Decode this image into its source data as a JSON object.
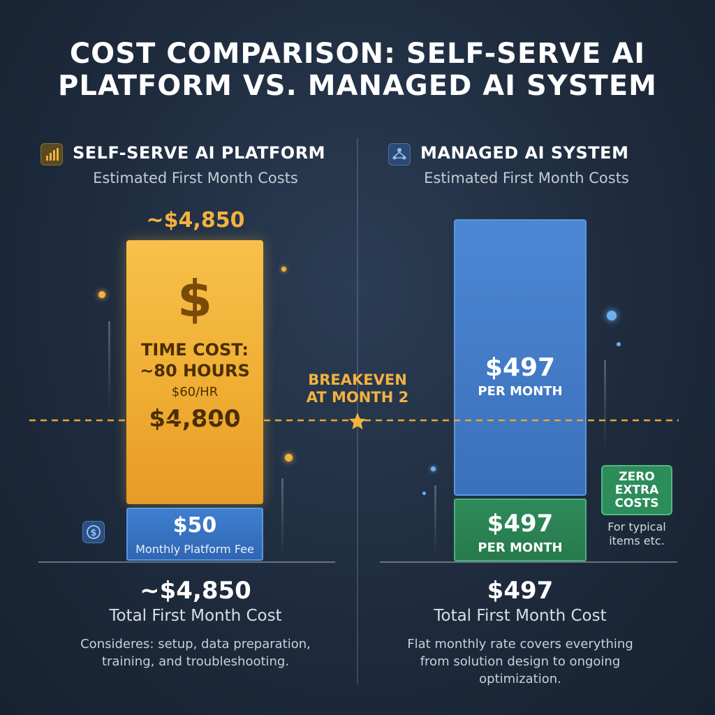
{
  "title": {
    "line1": "COST COMPARISON: SELF-SERVE AI",
    "line2": "PLATFORM VS. MANAGED AI SYSTEM"
  },
  "colors": {
    "gold": "#f0ae33",
    "blue": "#3a70bc",
    "green": "#2f8a5a",
    "dash": "#e8a832"
  },
  "left": {
    "heading": "SELF-SERVE AI PLATFORM",
    "subheading": "Estimated First Month Costs",
    "icon": "bar-chart-icon",
    "top_label": "~$4,850",
    "dollar_glyph": "$",
    "time_cost_line1": "TIME COST:",
    "time_cost_line2": "~80 HOURS",
    "rate": "$60/HR",
    "time_value": "$4,800",
    "fee_value": "$50",
    "fee_label": "Monthly Platform Fee",
    "coin_icon": "dollar-coin-icon",
    "total": "~$4,850",
    "total_label": "Total First Month Cost",
    "note_line1": "Consideres: setup, data preparation,",
    "note_line2": "training, and troubleshooting."
  },
  "right": {
    "heading": "MANAGED AI SYSTEM",
    "subheading": "Estimated First Month Costs",
    "icon": "network-icon",
    "upper_value": "$497",
    "upper_label": "PER MONTH",
    "lower_value": "$497",
    "lower_label": "PER MONTH",
    "badge_line1": "ZERO",
    "badge_line2": "EXTRA",
    "badge_line3": "COSTS",
    "badge_note_line1": "For typical",
    "badge_note_line2": "items etc.",
    "total": "$497",
    "total_label": "Total First Month Cost",
    "note_line1": "Flat monthly rate covers everything",
    "note_line2": "from solution design to ongoing",
    "note_line3": "optimization."
  },
  "breakeven": {
    "line1": "BREAKEVEN",
    "line2": "AT MONTH 2",
    "icon": "star-icon"
  },
  "chart_data": {
    "type": "bar",
    "stacked": true,
    "categories": [
      "SELF-SERVE AI PLATFORM",
      "MANAGED AI SYSTEM"
    ],
    "series": [
      {
        "name": "TIME COST",
        "values": [
          4800,
          0
        ]
      },
      {
        "name": "Monthly Platform Fee",
        "values": [
          50,
          0
        ]
      },
      {
        "name": "PER MONTH",
        "values": [
          0,
          497
        ]
      }
    ],
    "totals": [
      4850,
      497
    ],
    "annotation": "BREAKEVEN AT MONTH 2"
  }
}
